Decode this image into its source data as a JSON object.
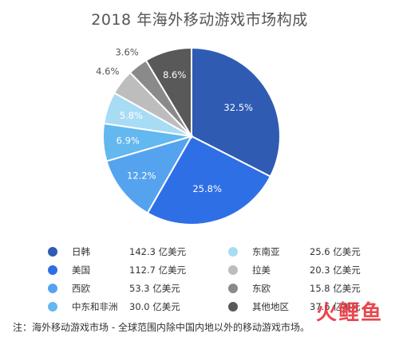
{
  "chart_data": {
    "type": "pie",
    "title": "2018 年海外移动游戏市场构成",
    "slices": [
      {
        "name": "日韩",
        "value": 142.3,
        "value_label": "142.3 亿美元",
        "percent": 32.5,
        "percent_label": "32.5%",
        "color": "#2f5bb3"
      },
      {
        "name": "美国",
        "value": 112.7,
        "value_label": "112.7 亿美元",
        "percent": 25.8,
        "percent_label": "25.8%",
        "color": "#2f6fe6"
      },
      {
        "name": "西欧",
        "value": 53.3,
        "value_label": "53.3 亿美元",
        "percent": 12.2,
        "percent_label": "12.2%",
        "color": "#55a3ef"
      },
      {
        "name": "中东和非洲",
        "value": 30.0,
        "value_label": "30.0 亿美元",
        "percent": 6.9,
        "percent_label": "6.9%",
        "color": "#62b8ef"
      },
      {
        "name": "东南亚",
        "value": 25.6,
        "value_label": "25.6 亿美元",
        "percent": 5.8,
        "percent_label": "5.8%",
        "color": "#a8dcf4"
      },
      {
        "name": "拉美",
        "value": 20.3,
        "value_label": "20.3 亿美元",
        "percent": 4.6,
        "percent_label": "4.6%",
        "color": "#bdbdbd"
      },
      {
        "name": "东欧",
        "value": 15.8,
        "value_label": "15.8 亿美元",
        "percent": 3.6,
        "percent_label": "3.6%",
        "color": "#8a8a8a"
      },
      {
        "name": "其他地区",
        "value": 37.6,
        "value_label": "37.6 亿美元",
        "percent": 8.6,
        "percent_label": "8.6%",
        "color": "#595959"
      }
    ],
    "legend_order": [
      "日韩",
      "东南亚",
      "美国",
      "拉美",
      "西欧",
      "东欧",
      "中东和非洲",
      "其他地区"
    ]
  },
  "note": "注：海外移动游戏市场 - 全球范围内除中国内地以外的移动游戏市场。",
  "watermark": "火鲤鱼"
}
